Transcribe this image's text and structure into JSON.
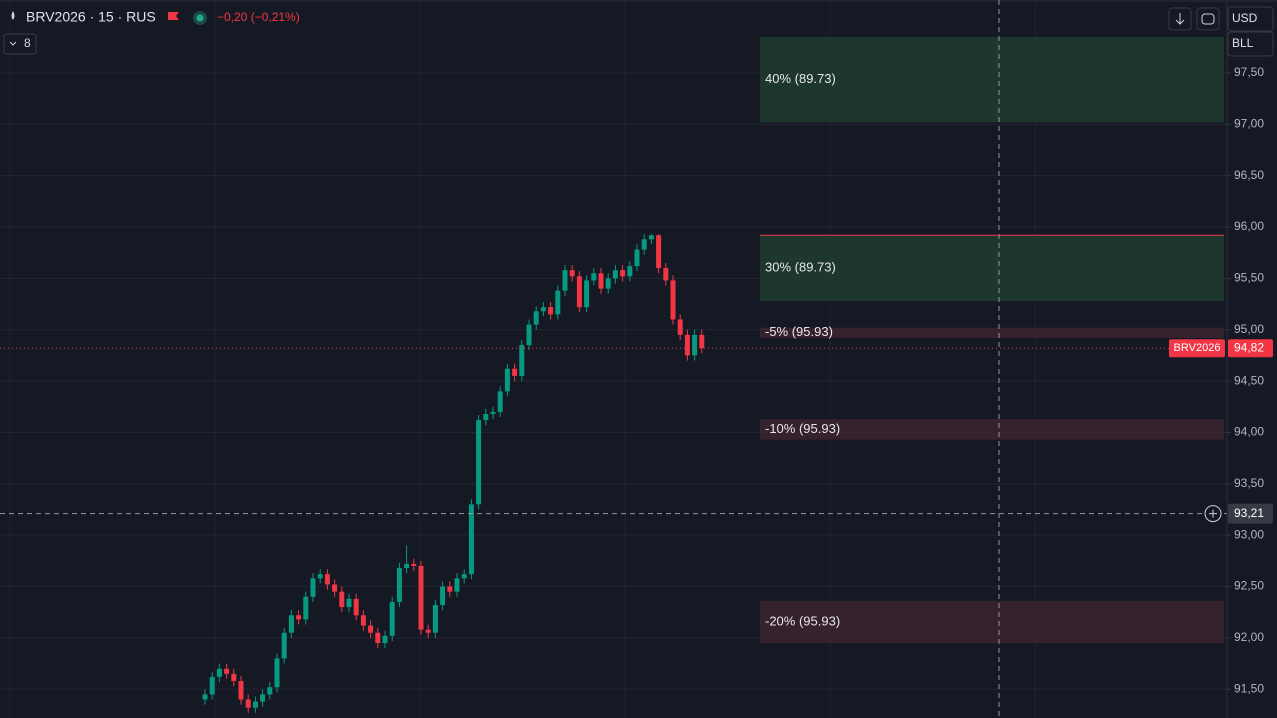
{
  "header": {
    "symbol": "BRV2026 · 15 · RUS",
    "change": "−0,20 (−0,21%)",
    "indicators": "8"
  },
  "toolbar": {
    "currency": "USD",
    "unit": "BLL"
  },
  "chart_data": {
    "type": "candlestick",
    "up_color": "#089981",
    "down_color": "#f23645",
    "open": [
      91.4,
      91.45,
      91.62,
      91.7,
      91.65,
      91.58,
      91.4,
      91.32,
      91.38,
      91.45,
      91.52,
      91.8,
      92.05,
      92.22,
      92.18,
      92.4,
      92.58,
      92.62,
      92.52,
      92.45,
      92.3,
      92.38,
      92.22,
      92.12,
      92.05,
      91.95,
      92.02,
      92.35,
      92.68,
      92.72,
      92.7,
      92.08,
      92.05,
      92.32,
      92.5,
      92.45,
      92.58,
      92.62,
      93.3,
      94.12,
      94.18,
      94.2,
      94.4,
      94.62,
      94.55,
      94.85,
      95.05,
      95.18,
      95.22,
      95.15,
      95.38,
      95.58,
      95.52,
      95.22,
      95.48,
      95.55,
      95.4,
      95.5,
      95.58,
      95.52,
      95.62,
      95.78,
      95.88,
      95.92,
      95.6,
      95.48,
      95.1,
      94.95,
      94.75,
      94.95
    ],
    "high": [
      91.5,
      91.67,
      91.75,
      91.75,
      91.7,
      91.63,
      91.45,
      91.43,
      91.5,
      91.57,
      91.85,
      92.1,
      92.27,
      92.27,
      92.45,
      92.63,
      92.67,
      92.67,
      92.57,
      92.5,
      92.43,
      92.43,
      92.27,
      92.17,
      92.1,
      92.07,
      92.4,
      92.73,
      92.9,
      92.77,
      92.75,
      92.13,
      92.37,
      92.55,
      92.55,
      92.63,
      92.67,
      93.35,
      94.17,
      94.23,
      94.25,
      94.45,
      94.67,
      94.67,
      94.9,
      95.1,
      95.23,
      95.27,
      95.27,
      95.43,
      95.63,
      95.63,
      95.57,
      95.53,
      95.6,
      95.6,
      95.55,
      95.63,
      95.63,
      95.67,
      95.83,
      95.93,
      95.93,
      95.93,
      95.65,
      95.53,
      95.15,
      95.0,
      95.0,
      95.0
    ],
    "low": [
      91.35,
      91.4,
      91.57,
      91.6,
      91.53,
      91.35,
      91.27,
      91.27,
      91.33,
      91.4,
      91.47,
      91.75,
      92.0,
      92.13,
      92.13,
      92.35,
      92.53,
      92.47,
      92.4,
      92.25,
      92.25,
      92.17,
      92.07,
      92.0,
      91.9,
      91.9,
      91.97,
      92.3,
      92.63,
      92.65,
      92.03,
      92.0,
      92.0,
      92.27,
      92.4,
      92.4,
      92.53,
      92.57,
      93.25,
      94.07,
      94.13,
      94.15,
      94.35,
      94.5,
      94.5,
      94.8,
      95.0,
      95.13,
      95.1,
      95.1,
      95.33,
      95.47,
      95.17,
      95.17,
      95.43,
      95.35,
      95.35,
      95.45,
      95.47,
      95.47,
      95.57,
      95.73,
      95.83,
      95.55,
      95.43,
      95.05,
      94.9,
      94.7,
      94.7,
      94.77
    ],
    "close": [
      91.45,
      91.62,
      91.7,
      91.65,
      91.58,
      91.4,
      91.32,
      91.38,
      91.45,
      91.52,
      91.8,
      92.05,
      92.22,
      92.18,
      92.4,
      92.58,
      92.62,
      92.52,
      92.45,
      92.3,
      92.38,
      92.22,
      92.12,
      92.05,
      91.95,
      92.02,
      92.35,
      92.68,
      92.72,
      92.7,
      92.08,
      92.05,
      92.32,
      92.5,
      92.45,
      92.58,
      92.62,
      93.3,
      94.12,
      94.18,
      94.2,
      94.4,
      94.62,
      94.55,
      94.85,
      95.05,
      95.18,
      95.22,
      95.15,
      95.38,
      95.58,
      95.52,
      95.22,
      95.48,
      95.55,
      95.4,
      95.5,
      95.58,
      95.52,
      95.62,
      95.78,
      95.88,
      95.92,
      95.6,
      95.48,
      95.1,
      94.95,
      94.75,
      94.95,
      94.82
    ],
    "ylim": [
      91.22,
      98.21
    ],
    "yticks": [
      {
        "value": 97.5,
        "label": "97,50"
      },
      {
        "value": 97.0,
        "label": "97,00"
      },
      {
        "value": 96.5,
        "label": "96,50"
      },
      {
        "value": 96.0,
        "label": "96,00"
      },
      {
        "value": 95.5,
        "label": "95,50"
      },
      {
        "value": 95.0,
        "label": "95,00"
      },
      {
        "value": 94.5,
        "label": "94,50"
      },
      {
        "value": 94.0,
        "label": "94,00"
      },
      {
        "value": 93.5,
        "label": "93,50"
      },
      {
        "value": 93.0,
        "label": "93,00"
      },
      {
        "value": 92.5,
        "label": "92,50"
      },
      {
        "value": 92.0,
        "label": "92,00"
      },
      {
        "value": 91.5,
        "label": "91,50"
      }
    ],
    "grid": true,
    "last_price": {
      "name": "BRV2026",
      "price": {
        "value": 94.82,
        "label": "94,82"
      }
    },
    "crosshair": {
      "value": 93.21,
      "label": "93,21"
    },
    "zones": [
      {
        "label": "40% (89.73)",
        "top": 97.85,
        "bottom": 97.02,
        "color": "#1e3a30"
      },
      {
        "label": "30% (89.73)",
        "top": 95.92,
        "bottom": 95.28,
        "color": "#1e3a30",
        "edge_color": "#f23645"
      },
      {
        "label": "-5% (95.93)",
        "top": 95.02,
        "bottom": 94.92,
        "color": "#3a2230"
      },
      {
        "label": "-10% (95.93)",
        "top": 94.13,
        "bottom": 93.93,
        "color": "#3a2230"
      },
      {
        "label": "-20% (95.93)",
        "top": 92.36,
        "bottom": 91.95,
        "color": "#3a2230"
      }
    ]
  }
}
